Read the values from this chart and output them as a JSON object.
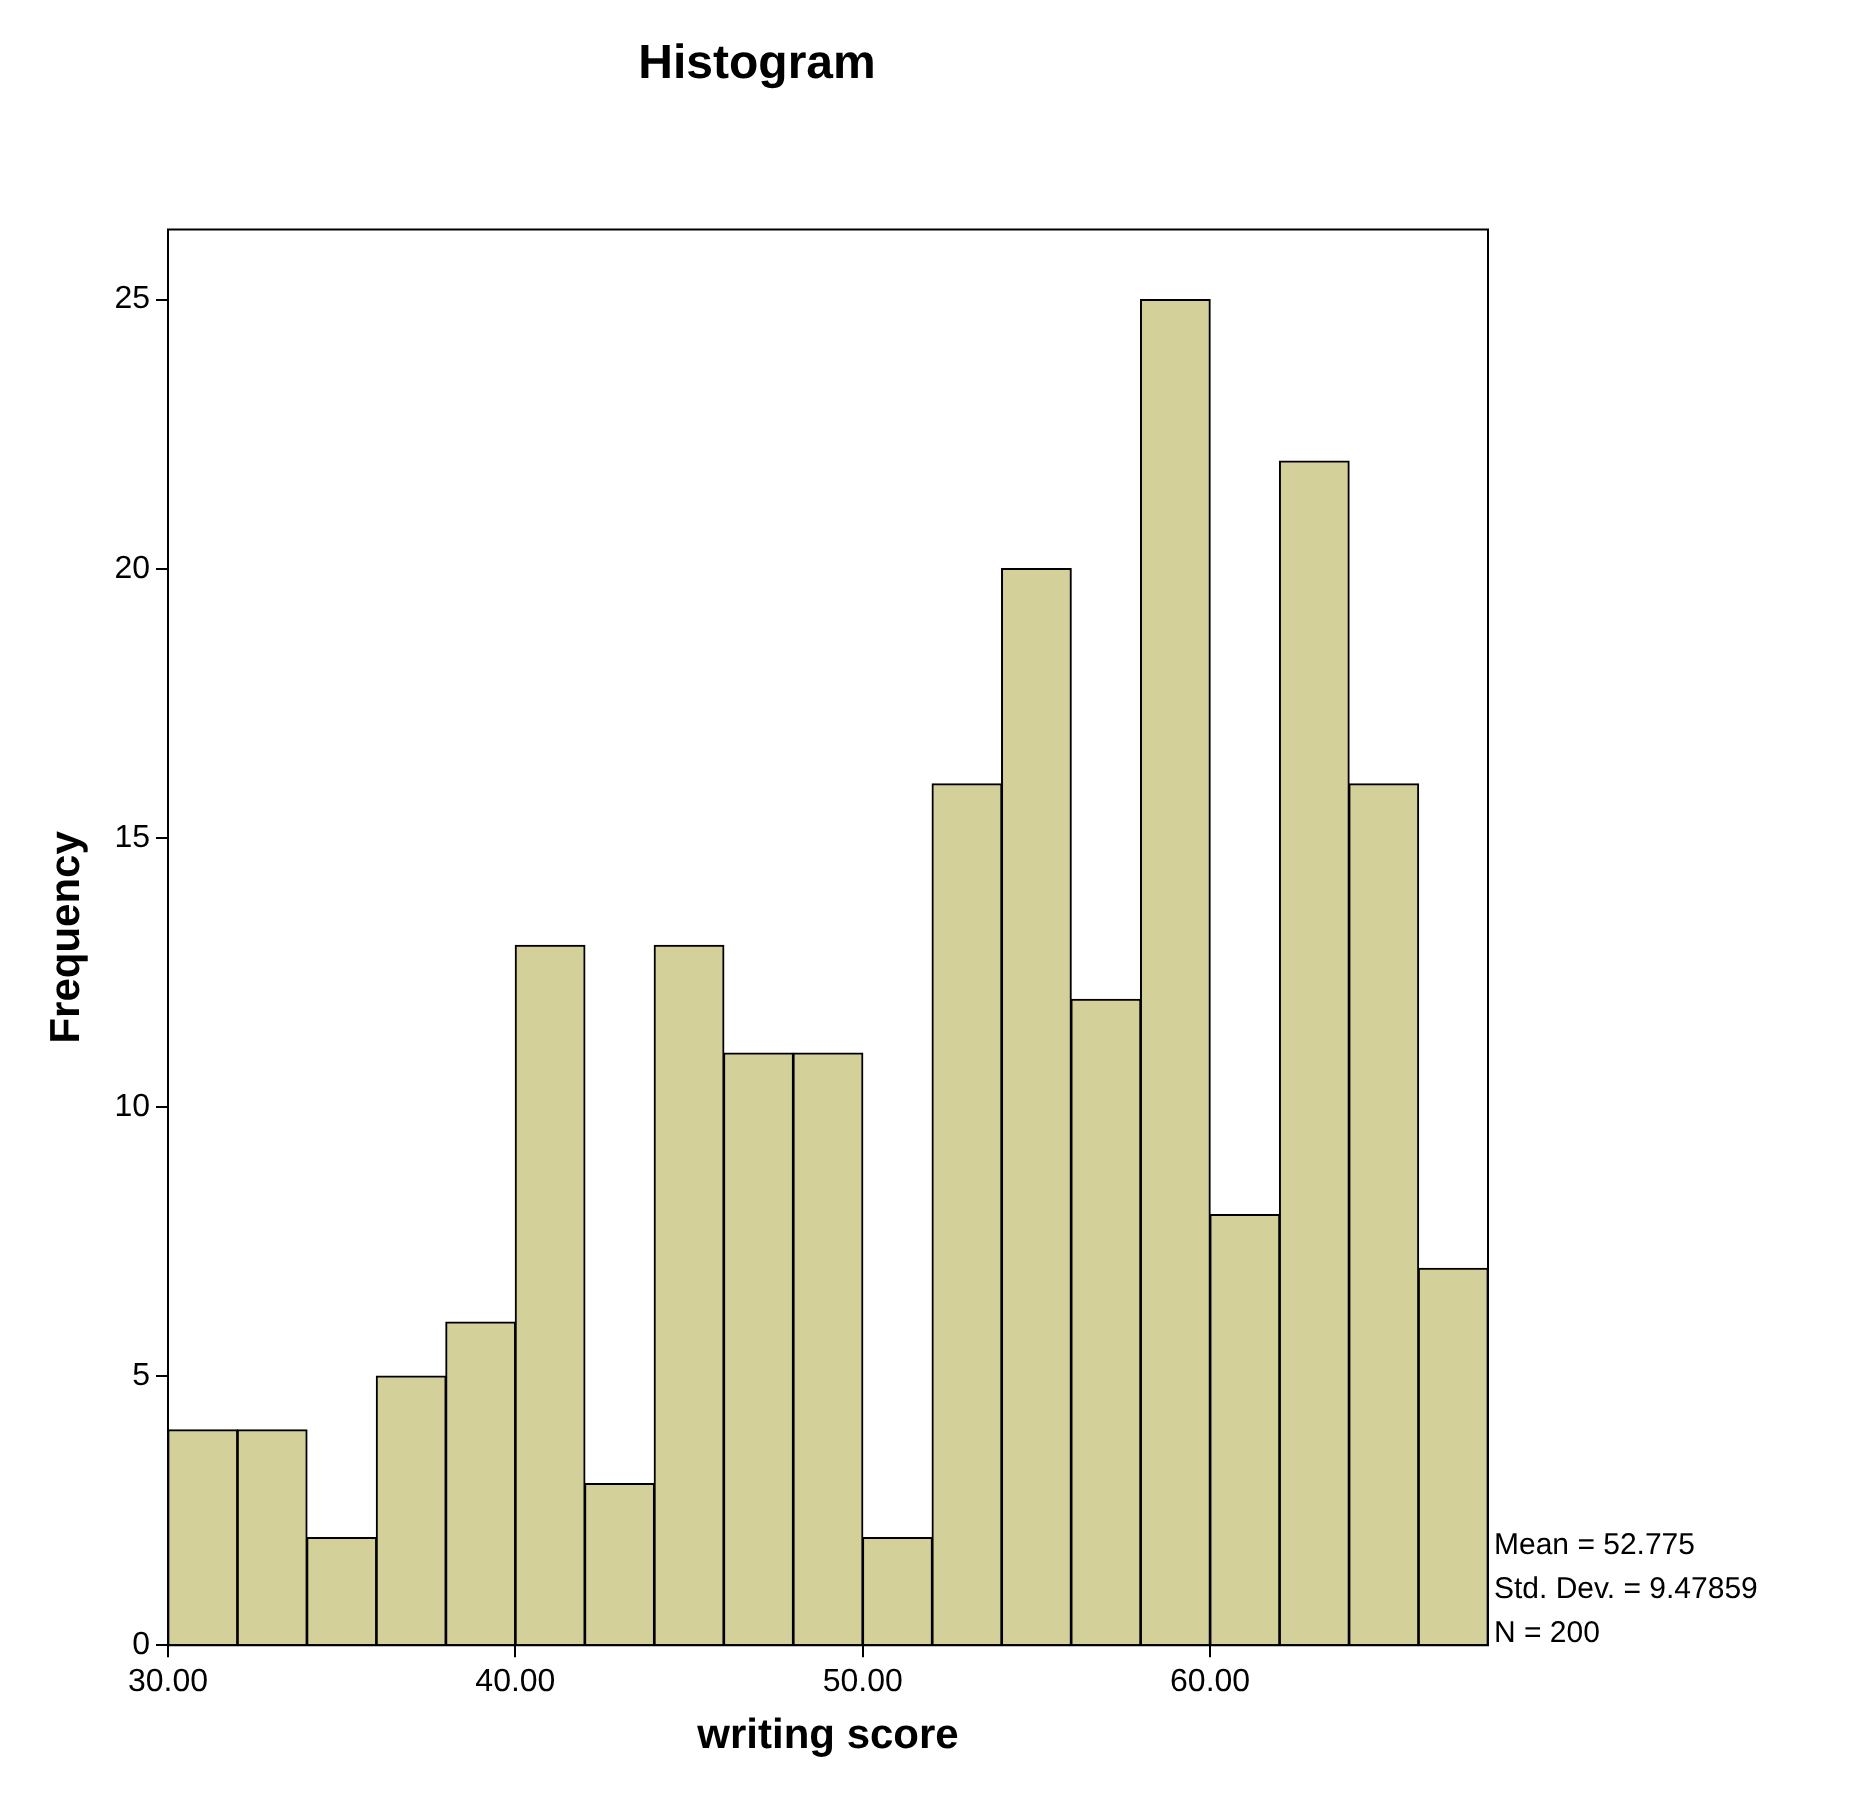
{
  "chart_data": {
    "type": "histogram",
    "title": "Histogram",
    "xlabel": "writing score",
    "ylabel": "Frequency",
    "bins": [
      30,
      32,
      34,
      36,
      38,
      40,
      42,
      44,
      46,
      48,
      50,
      52,
      54,
      56,
      58,
      60,
      62,
      64,
      66,
      68
    ],
    "values": [
      4,
      4,
      2,
      5,
      6,
      13,
      3,
      13,
      11,
      11,
      2,
      16,
      20,
      12,
      25,
      8,
      22,
      16,
      7
    ],
    "color": "#d4d09a",
    "xlim": [
      30,
      68
    ],
    "xticks": [
      {
        "value": 30,
        "label": "30.00"
      },
      {
        "value": 40,
        "label": "40.00"
      },
      {
        "value": 50,
        "label": "50.00"
      },
      {
        "value": 60,
        "label": "60.00"
      }
    ],
    "ylim": [
      0,
      26.3
    ],
    "yticks": [
      0,
      5,
      10,
      15,
      20,
      25
    ],
    "grid": false,
    "legend": false,
    "annotations": [
      "Mean = 52.775",
      "Std. Dev. = 9.47859",
      "N = 200"
    ]
  }
}
